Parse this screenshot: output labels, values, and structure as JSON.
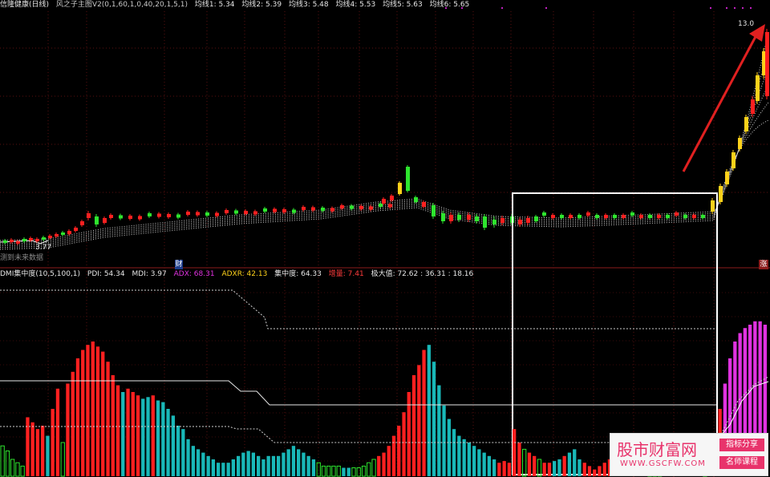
{
  "price_header": {
    "title": "信隆健康(日线)",
    "indicator": "风之子主图V2(0,1,60,1,0,40,20,1,5,1)",
    "ma1": "均线1: 5.34",
    "ma2": "均线2: 5.39",
    "ma3": "均线3: 5.48",
    "ma4": "均线4: 5.53",
    "ma5": "均线5: 5.63",
    "ma6": "均线6: 5.65"
  },
  "price_panel": {
    "high_label": "13.0",
    "low_label": "3.77",
    "future_label": "测到未来数据",
    "marker_cai": "财",
    "marker_zhang": "涨"
  },
  "dmi_header": {
    "name": "DMI集中度(10,5,100,1)",
    "pdi": "PDI: 54.34",
    "mdi": "MDI: 3.97",
    "adx": "ADX: 68.31",
    "adxr": "ADXR: 42.13",
    "concentration": "集中度: 64.33",
    "increase": "增量: 7.41",
    "extreme": "极大值: 72.62 : 36.31 : 18.16"
  },
  "watermark": {
    "brand": "股市财富网",
    "url": "WWW.GSCFW.COM",
    "tag1": "指标分享",
    "tag2": "名师课程"
  },
  "colors": {
    "up": "#ff2020",
    "down": "#19b8b8",
    "rise": "#e032e0",
    "yellow": "#ffd21a",
    "green_candle": "#2ee62e",
    "highlight_box": "#ffffff",
    "arrow": "#e02020"
  },
  "chart_data": {
    "type": "bar",
    "price_range": [
      3.77,
      13.0
    ],
    "dmi_bars": {
      "colors": [
        "green",
        "green",
        "green",
        "green",
        "green",
        "red",
        "red",
        "red",
        "red",
        "cyan",
        "red",
        "red",
        "green",
        "red",
        "red",
        "red",
        "red",
        "red",
        "red",
        "red",
        "red",
        "red",
        "red",
        "red",
        "cyan",
        "red",
        "red",
        "red",
        "cyan",
        "cyan",
        "red",
        "cyan",
        "cyan",
        "cyan",
        "cyan",
        "cyan",
        "cyan",
        "cyan",
        "cyan",
        "cyan",
        "cyan",
        "cyan",
        "cyan",
        "cyan",
        "cyan",
        "cyan",
        "cyan",
        "cyan",
        "cyan",
        "cyan",
        "cyan",
        "cyan",
        "cyan",
        "cyan",
        "cyan",
        "cyan",
        "cyan",
        "cyan",
        "cyan",
        "cyan",
        "cyan",
        "cyan",
        "cyan",
        "green",
        "green",
        "green",
        "green",
        "green",
        "cyan",
        "cyan",
        "green",
        "green",
        "green",
        "green",
        "green",
        "red",
        "red",
        "red",
        "red",
        "red",
        "red",
        "red",
        "red",
        "red",
        "red",
        "cyan",
        "cyan",
        "cyan",
        "cyan",
        "cyan",
        "cyan",
        "cyan",
        "cyan",
        "cyan",
        "cyan",
        "cyan",
        "cyan",
        "cyan",
        "cyan",
        "red",
        "red",
        "red",
        "red",
        "red",
        "green",
        "red",
        "red",
        "green",
        "red",
        "red",
        "cyan",
        "cyan",
        "red",
        "cyan",
        "cyan",
        "cyan",
        "red",
        "red",
        "red",
        "red",
        "red",
        "red",
        "cyan",
        "cyan",
        "red",
        "cyan",
        "red",
        "red",
        "red",
        "green",
        "green",
        "green",
        "red",
        "red",
        "red",
        "red",
        "red",
        "red",
        "red",
        "red",
        "green",
        "red",
        "red",
        "red",
        "magenta",
        "magenta",
        "magenta",
        "magenta",
        "magenta",
        "magenta",
        "magenta",
        "magenta",
        "magenta",
        "magenta",
        "magenta"
      ],
      "values": [
        18,
        15,
        10,
        8,
        6,
        35,
        32,
        28,
        30,
        24,
        40,
        52,
        20,
        55,
        62,
        70,
        75,
        78,
        80,
        77,
        74,
        68,
        60,
        54,
        50,
        52,
        50,
        48,
        46,
        47,
        48,
        45,
        44,
        40,
        36,
        30,
        28,
        22,
        18,
        16,
        14,
        12,
        10,
        8,
        8,
        8,
        10,
        12,
        14,
        15,
        14,
        12,
        10,
        12,
        12,
        12,
        14,
        16,
        18,
        16,
        14,
        12,
        10,
        8,
        6,
        6,
        6,
        6,
        5,
        5,
        5,
        5,
        6,
        8,
        10,
        12,
        14,
        18,
        24,
        30,
        38,
        50,
        60,
        66,
        75,
        78,
        68,
        54,
        42,
        34,
        28,
        24,
        22,
        20,
        18,
        16,
        14,
        12,
        10,
        8,
        9,
        8,
        28,
        20,
        16,
        14,
        12,
        10,
        8,
        8,
        9,
        10,
        12,
        14,
        16,
        10,
        8,
        6,
        4,
        6,
        8,
        10,
        12,
        14,
        10,
        8,
        6,
        14,
        12,
        12,
        12,
        12,
        12,
        12,
        10,
        8,
        8,
        12,
        12,
        12,
        12,
        12,
        12,
        40,
        55,
        70,
        80,
        85,
        88,
        90,
        92,
        92,
        90
      ]
    }
  }
}
